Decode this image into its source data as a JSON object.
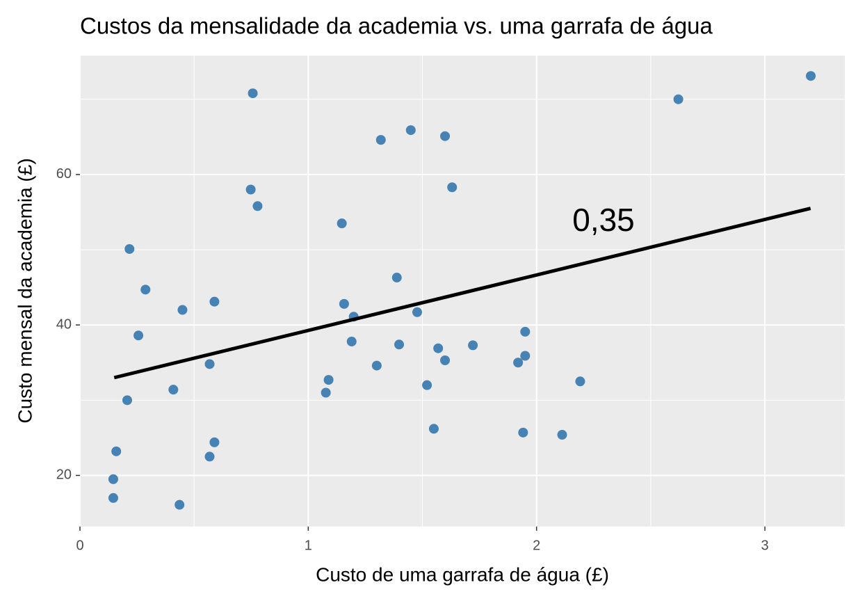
{
  "chart_data": {
    "type": "scatter",
    "title": "Custos da mensalidade da academia vs. uma garrafa de água",
    "x_label": "Custo de uma garrafa de água (£)",
    "y_label": "Custo mensal da academia (£)",
    "annotation": "0,35",
    "color": "#4682b4",
    "x": [
      0.146,
      0.146,
      0.159,
      0.207,
      0.217,
      0.256,
      0.287,
      0.409,
      0.436,
      0.449,
      0.568,
      0.568,
      0.589,
      0.589,
      0.748,
      0.757,
      0.778,
      1.077,
      1.089,
      1.147,
      1.157,
      1.19,
      1.199,
      1.3,
      1.318,
      1.388,
      1.398,
      1.449,
      1.477,
      1.52,
      1.55,
      1.569,
      1.599,
      1.599,
      1.63,
      1.721,
      1.919,
      1.941,
      1.95,
      1.95,
      2.112,
      2.191,
      2.621,
      3.201
    ],
    "values": [
      17.0,
      19.5,
      23.2,
      30.0,
      50.1,
      38.6,
      44.7,
      31.4,
      16.1,
      42.0,
      22.5,
      34.8,
      24.4,
      43.1,
      58.0,
      70.8,
      55.8,
      31.0,
      32.7,
      53.5,
      42.8,
      37.8,
      41.1,
      34.6,
      64.6,
      46.3,
      37.4,
      65.9,
      41.7,
      32.0,
      26.2,
      36.9,
      35.3,
      65.1,
      58.3,
      37.3,
      35.0,
      25.7,
      35.9,
      39.1,
      25.4,
      32.5,
      70.0,
      73.1
    ],
    "fit_line": {
      "x": [
        0.15,
        3.2
      ],
      "values": [
        33.0,
        55.5
      ],
      "color": "#000000"
    },
    "xlim": [
      0,
      3.35
    ],
    "xticks": [
      0,
      1,
      2,
      3
    ],
    "ylim": [
      13.2,
      75.8
    ],
    "yticks": [
      20,
      40,
      60
    ],
    "grid": true
  }
}
